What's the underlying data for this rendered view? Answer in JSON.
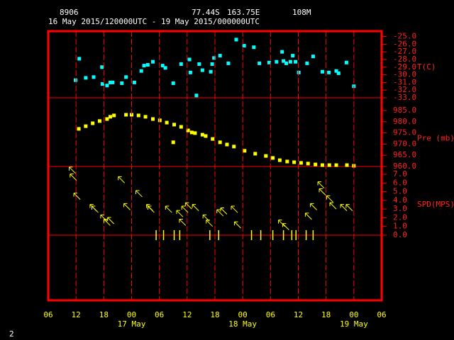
{
  "header": {
    "station": "8906",
    "lat": "77.44S",
    "lon": "163.75E",
    "elev": "108M",
    "period": "16 May 2015/120000UTC - 19 May 2015/000000UTC"
  },
  "footer": "2",
  "chart_data": [
    {
      "type": "scatter",
      "ylabel": "T(C)",
      "color": "#00ffff",
      "xlim": [
        6,
        78
      ],
      "ylim": [
        -33,
        -24.3
      ],
      "yticks": [
        {
          "value": -25,
          "label": "-25.0"
        },
        {
          "value": -26,
          "label": "-26.0"
        },
        {
          "value": -27,
          "label": "-27.0"
        },
        {
          "value": -28,
          "label": "-28.0"
        },
        {
          "value": -29,
          "label": "-29.0"
        },
        {
          "value": -30,
          "label": "-30.0"
        },
        {
          "value": -31,
          "label": "-31.0"
        },
        {
          "value": -32,
          "label": "-32.0"
        },
        {
          "value": -33,
          "label": "-33.0"
        }
      ],
      "x": [
        12.7,
        11.9,
        14.1,
        15.8,
        17.6,
        17.7,
        18.7,
        19.4,
        19.9,
        21.9,
        22.8,
        24.6,
        26.1,
        26.7,
        27.5,
        28.6,
        30.7,
        31.3,
        33.0,
        34.7,
        36.5,
        36.7,
        38.0,
        38.6,
        39.3,
        41.1,
        41.4,
        41.8,
        43.1,
        44.9,
        46.6,
        48.3,
        50.4,
        51.6,
        53.7,
        55.3,
        56.5,
        56.8,
        57.4,
        58.3,
        58.8,
        59.4,
        60.1,
        61.9,
        63.2,
        65.2,
        66.6,
        68.2,
        68.7,
        70.4,
        72.0
      ],
      "values": [
        -27.9,
        -30.7,
        -30.4,
        -30.3,
        -29.0,
        -31.2,
        -31.4,
        -31.0,
        -31.0,
        -31.1,
        -30.3,
        -31.0,
        -29.5,
        -28.8,
        -28.7,
        -28.3,
        -28.8,
        -29.1,
        -31.1,
        -28.6,
        -28.0,
        -29.7,
        -32.7,
        -28.6,
        -29.4,
        -29.6,
        -28.6,
        -27.8,
        -27.5,
        -28.5,
        -25.4,
        -26.2,
        -26.4,
        -28.5,
        -28.4,
        -28.3,
        -27.0,
        -28.2,
        -28.5,
        -28.3,
        -27.5,
        -28.3,
        -29.7,
        -28.5,
        -27.6,
        -29.6,
        -29.7,
        -29.5,
        -29.8,
        -28.4,
        -31.5
      ]
    },
    {
      "type": "scatter",
      "ylabel": "Pre (mb)",
      "color": "#ffff00",
      "xlim": [
        6,
        78
      ],
      "ylim": [
        960,
        990.7
      ],
      "yticks": [
        {
          "value": 960,
          "label": "960.0"
        },
        {
          "value": 965,
          "label": "965.0"
        },
        {
          "value": 970,
          "label": "970.0"
        },
        {
          "value": 975,
          "label": "975.0"
        },
        {
          "value": 980,
          "label": "980.0"
        },
        {
          "value": 985,
          "label": "985.0"
        }
      ],
      "x": [
        12.6,
        14.1,
        15.6,
        17.1,
        18.7,
        19.4,
        20.2,
        22.8,
        24.0,
        25.5,
        27.0,
        28.6,
        30.1,
        31.6,
        33.0,
        33.2,
        34.7,
        36.2,
        37.0,
        37.7,
        39.3,
        40.0,
        41.5,
        43.1,
        44.6,
        46.1,
        48.4,
        50.7,
        53.0,
        54.5,
        56.0,
        57.6,
        59.1,
        60.6,
        62.1,
        63.7,
        65.2,
        66.7,
        68.2,
        70.5,
        72.0
      ],
      "values": [
        976.8,
        978.0,
        979.3,
        980.3,
        981.2,
        982.2,
        982.8,
        983.1,
        983.1,
        982.8,
        982.2,
        981.2,
        980.6,
        979.6,
        970.8,
        978.7,
        977.7,
        976.1,
        975.2,
        974.9,
        974.2,
        973.6,
        972.3,
        970.8,
        969.8,
        968.9,
        967.0,
        965.7,
        964.7,
        963.8,
        962.8,
        962.2,
        961.9,
        961.6,
        961.3,
        960.9,
        960.6,
        960.6,
        960.6,
        960.6,
        960.3
      ]
    },
    {
      "type": "wind",
      "ylabel": "SPD(MPS)",
      "color": "#ffff00",
      "xlim": [
        6,
        78
      ],
      "ylim": [
        -7.5,
        7.9
      ],
      "yticks": [
        {
          "value": 0,
          "label": "0.0"
        },
        {
          "value": 1,
          "label": "1.0"
        },
        {
          "value": 2,
          "label": "2.0"
        },
        {
          "value": 3,
          "label": "3.0"
        },
        {
          "value": 4,
          "label": "4.0"
        },
        {
          "value": 5,
          "label": "5.0"
        },
        {
          "value": 6,
          "label": "6.0"
        },
        {
          "value": 7,
          "label": "7.0"
        }
      ],
      "xticks": [
        {
          "value": 6,
          "label": "06"
        },
        12,
        18,
        {
          "value": 24,
          "label": "00"
        },
        {
          "value": 30,
          "label": "06"
        },
        {
          "value": 36,
          "label": "12"
        },
        {
          "value": 42,
          "label": "18"
        },
        {
          "value": 48,
          "label": "00"
        },
        {
          "value": 54,
          "label": "06"
        },
        {
          "value": 60,
          "label": "12"
        },
        {
          "value": 66,
          "label": "18"
        },
        {
          "value": 72,
          "label": "00"
        },
        {
          "value": 78,
          "label": "06"
        }
      ],
      "date_labels": [
        {
          "value": 24,
          "label": "17 May"
        },
        {
          "value": 48,
          "label": "18 May"
        },
        {
          "value": 72,
          "label": "19 May"
        }
      ],
      "x": [
        11.9,
        12.1,
        12.9,
        16.4,
        16.8,
        18.7,
        19.4,
        20.2,
        22.5,
        23.7,
        26.3,
        28.6,
        28.9,
        29.3,
        30.9,
        32.7,
        33.2,
        34.4,
        35.1,
        35.7,
        36.2,
        37.0,
        38.5,
        40.8,
        40.9,
        41.5,
        42.8,
        43.8,
        44.6,
        46.9,
        47.6,
        49.9,
        51.9,
        54.5,
        56.8,
        57.1,
        58.0,
        58.6,
        59.5,
        61.7,
        62.9,
        63.2,
        64.0,
        65.6,
        65.9,
        67.5,
        68.2,
        70.5,
        71.7
      ],
      "values": [
        7.1,
        6.3,
        4.1,
        2.8,
        2.6,
        1.6,
        1.1,
        1.3,
        6.0,
        2.9,
        4.4,
        2.8,
        2.6,
        0,
        0,
        2.6,
        0,
        0,
        2.1,
        1.1,
        2.6,
        3.0,
        2.8,
        1.6,
        0,
        1.0,
        0,
        2.2,
        2.4,
        2.6,
        0.8,
        0,
        0,
        0,
        0,
        1.0,
        0.6,
        0,
        0,
        0,
        1.8,
        0,
        2.9,
        5.4,
        4.6,
        3.8,
        3.0,
        2.8,
        2.8
      ]
    }
  ]
}
